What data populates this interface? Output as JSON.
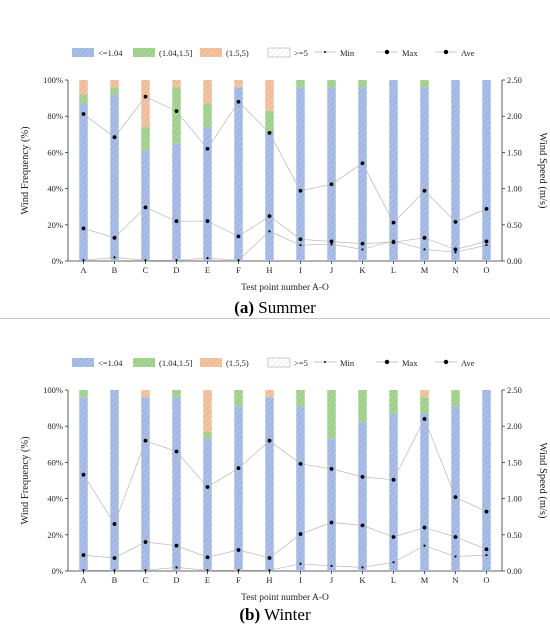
{
  "legend": {
    "labels": [
      "<=1.04",
      "(1.04,1.5]",
      "(1.5,5)",
      ">=5",
      "Min",
      "Max",
      "Ave"
    ]
  },
  "colors": {
    "le104": "#a9bde6",
    "b104_15": "#a7d494",
    "b15_5": "#f2c4a2",
    "ge5": "#ffffff",
    "line": "#b8b8b8",
    "marker": "#000000"
  },
  "charts": [
    {
      "caption_letter": "(a)",
      "caption_text": " Summer"
    },
    {
      "caption_letter": "(b)",
      "caption_text": " Winter"
    }
  ],
  "chart_data": [
    {
      "type": "bar",
      "subtype": "stacked-percent-with-line-overlay",
      "categories": [
        "A",
        "B",
        "C",
        "D",
        "E",
        "F",
        "H",
        "I",
        "J",
        "K",
        "L",
        "M",
        "N",
        "O"
      ],
      "xlabel": "Test point number A-O",
      "ylabel_left": "Wind Frequency (%)",
      "ylabel_right": "Wind Speed (m/s)",
      "ylim_left": [
        0,
        100
      ],
      "ylim_right": [
        0,
        2.5
      ],
      "yticks_left": [
        "0%",
        "20%",
        "40%",
        "60%",
        "80%",
        "100%"
      ],
      "yticks_right": [
        "0.00",
        "0.50",
        "1.00",
        "1.50",
        "2.00",
        "2.50"
      ],
      "series": [
        {
          "name": "<=1.04",
          "values": [
            87,
            92,
            61,
            65,
            74,
            96,
            71,
            96,
            96,
            96,
            100,
            96,
            100,
            100
          ]
        },
        {
          "name": "(1.04,1.5]",
          "values": [
            5,
            4,
            13,
            31,
            13,
            0,
            12,
            4,
            4,
            4,
            0,
            4,
            0,
            0
          ]
        },
        {
          "name": "(1.5,5)",
          "values": [
            8,
            4,
            26,
            4,
            13,
            4,
            17,
            0,
            0,
            0,
            0,
            0,
            0,
            0
          ]
        },
        {
          "name": ">=5",
          "values": [
            0,
            0,
            0,
            0,
            0,
            0,
            0,
            0,
            0,
            0,
            0,
            0,
            0,
            0
          ]
        }
      ],
      "lines": [
        {
          "name": "Min",
          "values": [
            0.01,
            0.05,
            0.01,
            0.01,
            0.04,
            0.01,
            0.41,
            0.22,
            0.23,
            0.16,
            0.28,
            0.16,
            0.12,
            0.22
          ]
        },
        {
          "name": "Max",
          "values": [
            2.03,
            1.71,
            2.27,
            2.07,
            1.55,
            2.2,
            1.77,
            0.97,
            1.06,
            1.35,
            0.53,
            0.97,
            0.54,
            0.72
          ]
        },
        {
          "name": "Ave",
          "values": [
            0.45,
            0.32,
            0.74,
            0.55,
            0.55,
            0.34,
            0.62,
            0.3,
            0.27,
            0.24,
            0.26,
            0.32,
            0.16,
            0.27
          ]
        }
      ]
    },
    {
      "type": "bar",
      "subtype": "stacked-percent-with-line-overlay",
      "categories": [
        "A",
        "B",
        "C",
        "D",
        "E",
        "F",
        "H",
        "I",
        "J",
        "K",
        "L",
        "M",
        "N",
        "O"
      ],
      "xlabel": "Test point number A-O",
      "ylabel_left": "Wind Frequency (%)",
      "ylabel_right": "Wind Speed (m/s)",
      "ylim_left": [
        0,
        100
      ],
      "ylim_right": [
        0,
        2.5
      ],
      "yticks_left": [
        "0%",
        "20%",
        "40%",
        "60%",
        "80%",
        "100%"
      ],
      "yticks_right": [
        "0.00",
        "0.50",
        "1.00",
        "1.50",
        "2.00",
        "2.50"
      ],
      "series": [
        {
          "name": "<=1.04",
          "values": [
            96,
            100,
            96,
            96,
            73,
            91,
            96,
            91,
            73,
            82,
            87,
            87,
            91,
            100
          ]
        },
        {
          "name": "(1.04,1.5]",
          "values": [
            4,
            0,
            0,
            4,
            4,
            9,
            0,
            9,
            27,
            18,
            13,
            9,
            9,
            0
          ]
        },
        {
          "name": "(1.5,5)",
          "values": [
            0,
            0,
            4,
            0,
            23,
            0,
            4,
            0,
            0,
            0,
            0,
            4,
            0,
            0
          ]
        },
        {
          "name": ">=5",
          "values": [
            0,
            0,
            0,
            0,
            0,
            0,
            0,
            0,
            0,
            0,
            0,
            0,
            0,
            0
          ]
        }
      ],
      "lines": [
        {
          "name": "Min",
          "values": [
            0.01,
            0.01,
            0.01,
            0.05,
            0.01,
            0.01,
            0.01,
            0.1,
            0.07,
            0.05,
            0.12,
            0.35,
            0.2,
            0.22
          ]
        },
        {
          "name": "Max",
          "values": [
            1.33,
            0.65,
            1.8,
            1.65,
            1.16,
            1.42,
            1.8,
            1.48,
            1.41,
            1.3,
            1.26,
            2.1,
            1.02,
            0.82
          ]
        },
        {
          "name": "Ave",
          "values": [
            0.22,
            0.18,
            0.4,
            0.35,
            0.19,
            0.29,
            0.18,
            0.51,
            0.67,
            0.63,
            0.47,
            0.6,
            0.47,
            0.3
          ]
        }
      ]
    }
  ]
}
